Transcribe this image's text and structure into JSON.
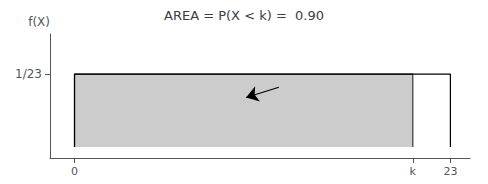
{
  "chart_data": {
    "type": "area",
    "title": "AREA = P(X < k) =  0.90",
    "ylabel": "f(X)",
    "series": [
      {
        "type": "line",
        "color": "#000000",
        "x": [
          0,
          0,
          23,
          23
        ],
        "values": [
          0,
          1.0,
          1.0,
          0
        ]
      },
      {
        "type": "area",
        "color": "#333333",
        "x": [
          0,
          0,
          20.7,
          20.7
        ],
        "values": [
          0,
          1.0,
          1.0,
          0
        ]
      }
    ],
    "annotations": [
      {
        "type": "arrow",
        "x": 10.5,
        "y": 0.68,
        "from_x": 12.5,
        "from_y": 0.82
      }
    ],
    "xlim": [
      -1.5,
      24.2
    ],
    "ylim": [
      -0.15,
      1.55
    ],
    "xticks": [
      0,
      {
        "value": 20.7,
        "label": "k"
      },
      23
    ],
    "yticks": [
      {
        "value": 1.0,
        "label": "1/23"
      }
    ],
    "grid": false
  }
}
